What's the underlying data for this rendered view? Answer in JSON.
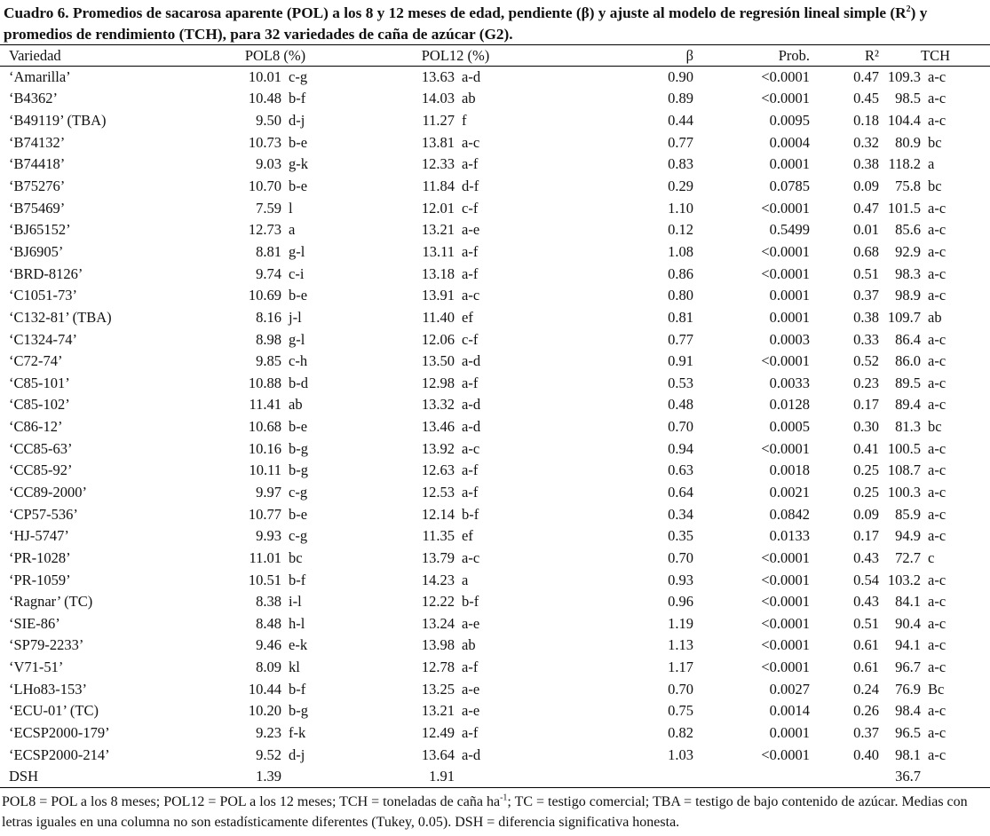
{
  "caption": {
    "part1": "Cuadro 6. Promedios de sacarosa aparente (POL) a los 8 y 12 meses de edad, pendiente (β) y ajuste al modelo de regresión lineal simple (R",
    "sup": "2",
    "part2": ") y promedios de rendimiento (TCH), para 32 variedades de caña de azúcar (G2)."
  },
  "headers": {
    "variedad": "Variedad",
    "pol8": "POL8 (%)",
    "pol12": "POL12 (%)",
    "beta": "β",
    "prob": "Prob.",
    "r2": "R²",
    "tch": "TCH"
  },
  "rows": [
    {
      "var": "‘Amarilla’",
      "pol8": "10.01",
      "pol8_l": "c-g",
      "pol12": "13.63",
      "pol12_l": "a-d",
      "beta": "0.90",
      "prob": "<0.0001",
      "r2": "0.47",
      "tch": "109.3",
      "tch_l": "a-c"
    },
    {
      "var": "‘B4362’",
      "pol8": "10.48",
      "pol8_l": "b-f",
      "pol12": "14.03",
      "pol12_l": "ab",
      "beta": "0.89",
      "prob": "<0.0001",
      "r2": "0.45",
      "tch": "98.5",
      "tch_l": "a-c"
    },
    {
      "var": "‘B49119’ (TBA)",
      "pol8": "9.50",
      "pol8_l": "d-j",
      "pol12": "11.27",
      "pol12_l": "f",
      "beta": "0.44",
      "prob": "0.0095",
      "r2": "0.18",
      "tch": "104.4",
      "tch_l": "a-c"
    },
    {
      "var": "‘B74132’",
      "pol8": "10.73",
      "pol8_l": "b-e",
      "pol12": "13.81",
      "pol12_l": "a-c",
      "beta": "0.77",
      "prob": "0.0004",
      "r2": "0.32",
      "tch": "80.9",
      "tch_l": "bc"
    },
    {
      "var": "‘B74418’",
      "pol8": "9.03",
      "pol8_l": "g-k",
      "pol12": "12.33",
      "pol12_l": "a-f",
      "beta": "0.83",
      "prob": "0.0001",
      "r2": "0.38",
      "tch": "118.2",
      "tch_l": "a"
    },
    {
      "var": "‘B75276’",
      "pol8": "10.70",
      "pol8_l": "b-e",
      "pol12": "11.84",
      "pol12_l": "d-f",
      "beta": "0.29",
      "prob": "0.0785",
      "r2": "0.09",
      "tch": "75.8",
      "tch_l": "bc"
    },
    {
      "var": "‘B75469’",
      "pol8": "7.59",
      "pol8_l": "l",
      "pol12": "12.01",
      "pol12_l": "c-f",
      "beta": "1.10",
      "prob": "<0.0001",
      "r2": "0.47",
      "tch": "101.5",
      "tch_l": "a-c"
    },
    {
      "var": "‘BJ65152’",
      "pol8": "12.73",
      "pol8_l": "a",
      "pol12": "13.21",
      "pol12_l": "a-e",
      "beta": "0.12",
      "prob": "0.5499",
      "r2": "0.01",
      "tch": "85.6",
      "tch_l": "a-c"
    },
    {
      "var": "‘BJ6905’",
      "pol8": "8.81",
      "pol8_l": "g-l",
      "pol12": "13.11",
      "pol12_l": "a-f",
      "beta": "1.08",
      "prob": "<0.0001",
      "r2": "0.68",
      "tch": "92.9",
      "tch_l": "a-c"
    },
    {
      "var": "‘BRD-8126’",
      "pol8": "9.74",
      "pol8_l": "c-i",
      "pol12": "13.18",
      "pol12_l": "a-f",
      "beta": "0.86",
      "prob": "<0.0001",
      "r2": "0.51",
      "tch": "98.3",
      "tch_l": "a-c"
    },
    {
      "var": "‘C1051-73’",
      "pol8": "10.69",
      "pol8_l": "b-e",
      "pol12": "13.91",
      "pol12_l": "a-c",
      "beta": "0.80",
      "prob": "0.0001",
      "r2": "0.37",
      "tch": "98.9",
      "tch_l": "a-c"
    },
    {
      "var": "‘C132-81’ (TBA)",
      "pol8": "8.16",
      "pol8_l": "j-l",
      "pol12": "11.40",
      "pol12_l": "ef",
      "beta": "0.81",
      "prob": "0.0001",
      "r2": "0.38",
      "tch": "109.7",
      "tch_l": "ab"
    },
    {
      "var": "‘C1324-74’",
      "pol8": "8.98",
      "pol8_l": "g-l",
      "pol12": "12.06",
      "pol12_l": "c-f",
      "beta": "0.77",
      "prob": "0.0003",
      "r2": "0.33",
      "tch": "86.4",
      "tch_l": "a-c"
    },
    {
      "var": "‘C72-74’",
      "pol8": "9.85",
      "pol8_l": "c-h",
      "pol12": "13.50",
      "pol12_l": "a-d",
      "beta": "0.91",
      "prob": "<0.0001",
      "r2": "0.52",
      "tch": "86.0",
      "tch_l": "a-c"
    },
    {
      "var": "‘C85-101’",
      "pol8": "10.88",
      "pol8_l": "b-d",
      "pol12": "12.98",
      "pol12_l": "a-f",
      "beta": "0.53",
      "prob": "0.0033",
      "r2": "0.23",
      "tch": "89.5",
      "tch_l": "a-c"
    },
    {
      "var": "‘C85-102’",
      "pol8": "11.41",
      "pol8_l": "ab",
      "pol12": "13.32",
      "pol12_l": "a-d",
      "beta": "0.48",
      "prob": "0.0128",
      "r2": "0.17",
      "tch": "89.4",
      "tch_l": "a-c"
    },
    {
      "var": "‘C86-12’",
      "pol8": "10.68",
      "pol8_l": "b-e",
      "pol12": "13.46",
      "pol12_l": "a-d",
      "beta": "0.70",
      "prob": "0.0005",
      "r2": "0.30",
      "tch": "81.3",
      "tch_l": "bc"
    },
    {
      "var": "‘CC85-63’",
      "pol8": "10.16",
      "pol8_l": "b-g",
      "pol12": "13.92",
      "pol12_l": "a-c",
      "beta": "0.94",
      "prob": "<0.0001",
      "r2": "0.41",
      "tch": "100.5",
      "tch_l": "a-c"
    },
    {
      "var": "‘CC85-92’",
      "pol8": "10.11",
      "pol8_l": "b-g",
      "pol12": "12.63",
      "pol12_l": "a-f",
      "beta": "0.63",
      "prob": "0.0018",
      "r2": "0.25",
      "tch": "108.7",
      "tch_l": "a-c"
    },
    {
      "var": "‘CC89-2000’",
      "pol8": "9.97",
      "pol8_l": "c-g",
      "pol12": "12.53",
      "pol12_l": "a-f",
      "beta": "0.64",
      "prob": "0.0021",
      "r2": "0.25",
      "tch": "100.3",
      "tch_l": "a-c"
    },
    {
      "var": "‘CP57-536’",
      "pol8": "10.77",
      "pol8_l": "b-e",
      "pol12": "12.14",
      "pol12_l": "b-f",
      "beta": "0.34",
      "prob": "0.0842",
      "r2": "0.09",
      "tch": "85.9",
      "tch_l": "a-c"
    },
    {
      "var": "‘HJ-5747’",
      "pol8": "9.93",
      "pol8_l": "c-g",
      "pol12": "11.35",
      "pol12_l": "ef",
      "beta": "0.35",
      "prob": "0.0133",
      "r2": "0.17",
      "tch": "94.9",
      "tch_l": "a-c"
    },
    {
      "var": "‘PR-1028’",
      "pol8": "11.01",
      "pol8_l": "bc",
      "pol12": "13.79",
      "pol12_l": "a-c",
      "beta": "0.70",
      "prob": "<0.0001",
      "r2": "0.43",
      "tch": "72.7",
      "tch_l": "c"
    },
    {
      "var": "‘PR-1059’",
      "pol8": "10.51",
      "pol8_l": "b-f",
      "pol12": "14.23",
      "pol12_l": "a",
      "beta": "0.93",
      "prob": "<0.0001",
      "r2": "0.54",
      "tch": "103.2",
      "tch_l": "a-c"
    },
    {
      "var": "‘Ragnar’ (TC)",
      "pol8": "8.38",
      "pol8_l": "i-l",
      "pol12": "12.22",
      "pol12_l": "b-f",
      "beta": "0.96",
      "prob": "<0.0001",
      "r2": "0.43",
      "tch": "84.1",
      "tch_l": "a-c"
    },
    {
      "var": "‘SIE-86’",
      "pol8": "8.48",
      "pol8_l": "h-l",
      "pol12": "13.24",
      "pol12_l": "a-e",
      "beta": "1.19",
      "prob": "<0.0001",
      "r2": "0.51",
      "tch": "90.4",
      "tch_l": "a-c"
    },
    {
      "var": "‘SP79-2233’",
      "pol8": "9.46",
      "pol8_l": "e-k",
      "pol12": "13.98",
      "pol12_l": "ab",
      "beta": "1.13",
      "prob": "<0.0001",
      "r2": "0.61",
      "tch": "94.1",
      "tch_l": "a-c"
    },
    {
      "var": "‘V71-51’",
      "pol8": "8.09",
      "pol8_l": "kl",
      "pol12": "12.78",
      "pol12_l": "a-f",
      "beta": "1.17",
      "prob": "<0.0001",
      "r2": "0.61",
      "tch": "96.7",
      "tch_l": "a-c"
    },
    {
      "var": "‘LHo83-153’",
      "pol8": "10.44",
      "pol8_l": "b-f",
      "pol12": "13.25",
      "pol12_l": "a-e",
      "beta": "0.70",
      "prob": "0.0027",
      "r2": "0.24",
      "tch": "76.9",
      "tch_l": "Bc"
    },
    {
      "var": "‘ECU-01’ (TC)",
      "pol8": "10.20",
      "pol8_l": "b-g",
      "pol12": "13.21",
      "pol12_l": "a-e",
      "beta": "0.75",
      "prob": "0.0014",
      "r2": "0.26",
      "tch": "98.4",
      "tch_l": "a-c"
    },
    {
      "var": "‘ECSP2000-179’",
      "pol8": "9.23",
      "pol8_l": "f-k",
      "pol12": "12.49",
      "pol12_l": "a-f",
      "beta": "0.82",
      "prob": "0.0001",
      "r2": "0.37",
      "tch": "96.5",
      "tch_l": "a-c"
    },
    {
      "var": "‘ECSP2000-214’",
      "pol8": "9.52",
      "pol8_l": "d-j",
      "pol12": "13.64",
      "pol12_l": "a-d",
      "beta": "1.03",
      "prob": "<0.0001",
      "r2": "0.40",
      "tch": "98.1",
      "tch_l": "a-c"
    }
  ],
  "dsh": {
    "label": "DSH",
    "pol8": "1.39",
    "pol12": "1.91",
    "tch": "36.7"
  },
  "notes": {
    "part1": "POL8 = POL a los 8 meses; POL12 = POL a los 12 meses; TCH = toneladas de caña ha",
    "sup": "-1",
    "part2": "; TC = testigo comercial; TBA = testigo de bajo contenido de azúcar. Medias con letras iguales en una columna no son estadísticamente diferentes (Tukey, 0.05). DSH = diferencia significativa honesta."
  }
}
